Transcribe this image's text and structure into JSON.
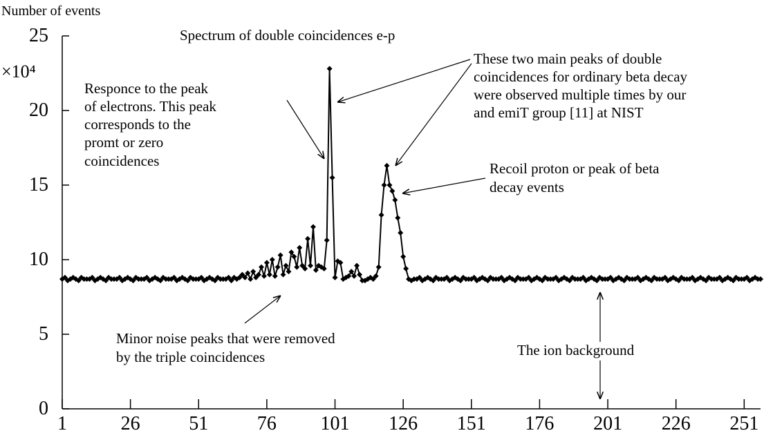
{
  "chart_data": {
    "type": "line",
    "title": "Spectrum of double coincidences e-p",
    "ylabel": "Number of events",
    "yunit": "×10⁴",
    "annotations": [
      [
        "Responce to the peak",
        "of electrons. This peak",
        "corresponds to the",
        "promt or zero",
        "coincidences"
      ],
      [
        "These two main peaks of double",
        "coincidences for  ordinary beta decay",
        "were observed multiple times by our",
        "and emiT group [11] at NIST"
      ],
      [
        "Recoil proton or peak of beta",
        "decay events"
      ],
      [
        "Minor noise peaks that were removed",
        "by the triple coincidences"
      ],
      [
        "The ion background"
      ]
    ],
    "xlim": [
      1,
      257
    ],
    "ylim": [
      0,
      25
    ],
    "xticks": [
      1,
      26,
      51,
      76,
      101,
      126,
      151,
      176,
      201,
      226,
      251
    ],
    "yticks": [
      0,
      5,
      10,
      15,
      20,
      25
    ],
    "series": [
      {
        "color": "#000000",
        "x": [
          1,
          2,
          3,
          4,
          5,
          6,
          7,
          8,
          9,
          10,
          11,
          12,
          13,
          14,
          15,
          16,
          17,
          18,
          19,
          20,
          21,
          22,
          23,
          24,
          25,
          26,
          27,
          28,
          29,
          30,
          31,
          32,
          33,
          34,
          35,
          36,
          37,
          38,
          39,
          40,
          41,
          42,
          43,
          44,
          45,
          46,
          47,
          48,
          49,
          50,
          51,
          52,
          53,
          54,
          55,
          56,
          57,
          58,
          59,
          60,
          61,
          62,
          63,
          64,
          65,
          66,
          67,
          68,
          69,
          70,
          71,
          72,
          73,
          74,
          75,
          76,
          77,
          78,
          79,
          80,
          81,
          82,
          83,
          84,
          85,
          86,
          87,
          88,
          89,
          90,
          91,
          92,
          93,
          94,
          95,
          96,
          97,
          98,
          99,
          100,
          101,
          102,
          103,
          104,
          105,
          106,
          107,
          108,
          109,
          110,
          111,
          112,
          113,
          114,
          115,
          116,
          117,
          118,
          119,
          120,
          121,
          122,
          123,
          124,
          125,
          126,
          127,
          128,
          129,
          130,
          131,
          132,
          133,
          134,
          135,
          136,
          137,
          138,
          139,
          140,
          141,
          142,
          143,
          144,
          145,
          146,
          147,
          148,
          149,
          150,
          151,
          152,
          153,
          154,
          155,
          156,
          157,
          158,
          159,
          160,
          161,
          162,
          163,
          164,
          165,
          166,
          167,
          168,
          169,
          170,
          171,
          172,
          173,
          174,
          175,
          176,
          177,
          178,
          179,
          180,
          181,
          182,
          183,
          184,
          185,
          186,
          187,
          188,
          189,
          190,
          191,
          192,
          193,
          194,
          195,
          196,
          197,
          198,
          199,
          200,
          201,
          202,
          203,
          204,
          205,
          206,
          207,
          208,
          209,
          210,
          211,
          212,
          213,
          214,
          215,
          216,
          217,
          218,
          219,
          220,
          221,
          222,
          223,
          224,
          225,
          226,
          227,
          228,
          229,
          230,
          231,
          232,
          233,
          234,
          235,
          236,
          237,
          238,
          239,
          240,
          241,
          242,
          243,
          244,
          245,
          246,
          247,
          248,
          249,
          250,
          251,
          252,
          253,
          254,
          255,
          256,
          257
        ],
        "values": [
          8.7,
          8.8,
          8.6,
          8.7,
          8.8,
          8.7,
          8.6,
          8.8,
          8.7,
          8.7,
          8.7,
          8.8,
          8.6,
          8.7,
          8.8,
          8.7,
          8.6,
          8.8,
          8.7,
          8.7,
          8.7,
          8.8,
          8.6,
          8.7,
          8.8,
          8.7,
          8.6,
          8.8,
          8.7,
          8.7,
          8.7,
          8.8,
          8.6,
          8.7,
          8.8,
          8.7,
          8.6,
          8.8,
          8.7,
          8.7,
          8.7,
          8.8,
          8.6,
          8.7,
          8.8,
          8.7,
          8.6,
          8.8,
          8.7,
          8.7,
          8.7,
          8.8,
          8.6,
          8.7,
          8.8,
          8.7,
          8.6,
          8.8,
          8.7,
          8.7,
          8.7,
          8.8,
          8.6,
          8.8,
          8.7,
          8.8,
          9.0,
          8.8,
          9.1,
          8.7,
          9.2,
          8.8,
          9.0,
          9.5,
          8.9,
          9.8,
          9.0,
          10.0,
          8.9,
          9.5,
          10.3,
          9.0,
          9.6,
          9.2,
          10.5,
          10.2,
          9.5,
          10.8,
          9.6,
          9.4,
          11.4,
          9.6,
          12.2,
          9.3,
          9.6,
          9.5,
          9.4,
          11.3,
          22.8,
          15.5,
          8.8,
          9.9,
          9.8,
          8.7,
          8.8,
          8.9,
          9.2,
          8.9,
          9.6,
          9.0,
          8.6,
          8.6,
          8.7,
          8.8,
          8.7,
          8.9,
          9.5,
          13.0,
          15.0,
          16.3,
          15.0,
          14.6,
          14.0,
          12.8,
          11.8,
          10.2,
          9.4,
          8.7,
          8.6,
          8.7,
          8.7,
          8.8,
          8.6,
          8.7,
          8.8,
          8.7,
          8.6,
          8.8,
          8.7,
          8.7,
          8.7,
          8.8,
          8.6,
          8.7,
          8.8,
          8.7,
          8.6,
          8.8,
          8.7,
          8.7,
          8.7,
          8.8,
          8.6,
          8.7,
          8.8,
          8.7,
          8.6,
          8.8,
          8.7,
          8.7,
          8.7,
          8.8,
          8.6,
          8.7,
          8.8,
          8.7,
          8.6,
          8.8,
          8.7,
          8.7,
          8.7,
          8.8,
          8.6,
          8.7,
          8.8,
          8.7,
          8.6,
          8.8,
          8.7,
          8.7,
          8.7,
          8.8,
          8.6,
          8.7,
          8.8,
          8.7,
          8.6,
          8.8,
          8.7,
          8.7,
          8.7,
          8.8,
          8.6,
          8.7,
          8.8,
          8.7,
          8.6,
          8.8,
          8.7,
          8.7,
          8.7,
          8.8,
          8.6,
          8.7,
          8.8,
          8.7,
          8.6,
          8.8,
          8.7,
          8.7,
          8.7,
          8.8,
          8.6,
          8.7,
          8.8,
          8.7,
          8.6,
          8.8,
          8.7,
          8.7,
          8.7,
          8.8,
          8.6,
          8.7,
          8.8,
          8.7,
          8.6,
          8.8,
          8.7,
          8.7,
          8.7,
          8.8,
          8.6,
          8.7,
          8.8,
          8.7,
          8.6,
          8.8,
          8.7,
          8.7,
          8.7,
          8.8,
          8.6,
          8.7,
          8.8,
          8.7,
          8.6,
          8.8,
          8.7,
          8.7,
          8.7,
          8.8,
          8.6,
          8.7,
          8.8,
          8.7,
          8.7
        ]
      }
    ]
  }
}
